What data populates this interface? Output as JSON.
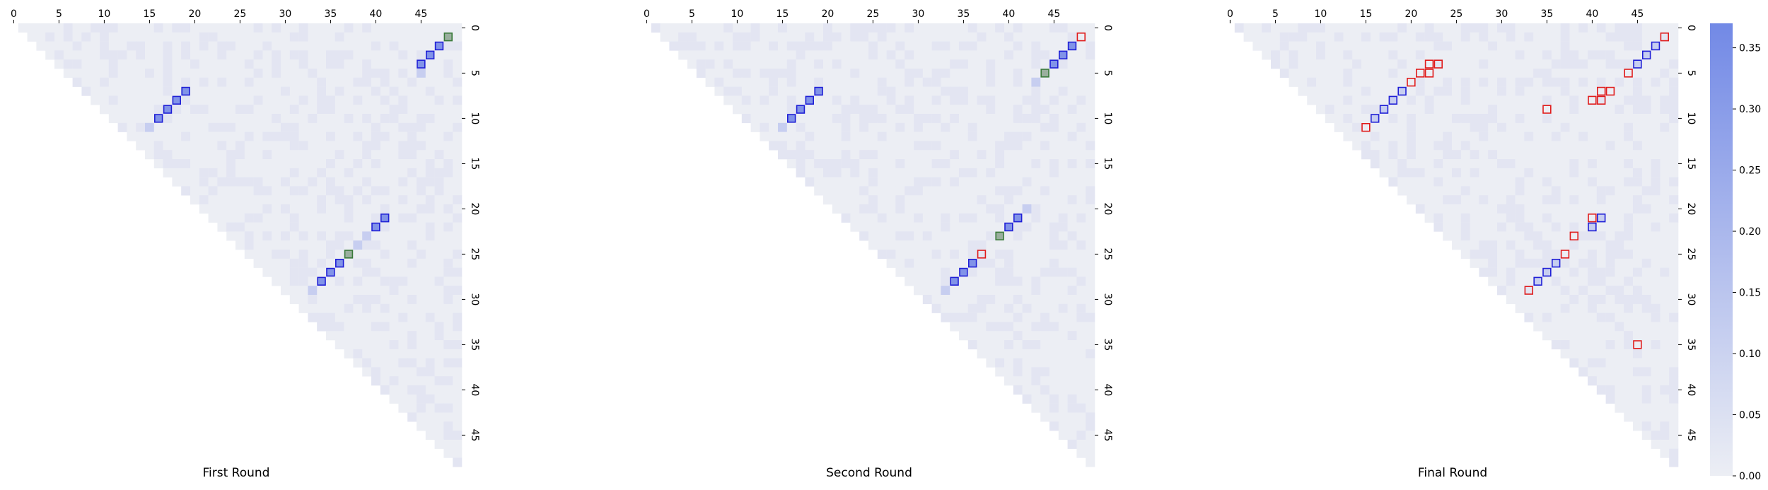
{
  "chart_data": [
    {
      "type": "heatmap",
      "title": "First Round",
      "xlabel": "",
      "ylabel": "",
      "grid_size": 50,
      "x_ticks": [
        0,
        5,
        10,
        15,
        20,
        25,
        30,
        35,
        40,
        45
      ],
      "y_ticks": [
        0,
        5,
        10,
        15,
        20,
        25,
        30,
        35,
        40,
        45
      ],
      "x_tick_position": "top",
      "y_tick_position": "right",
      "shape": "upper-triangle (lower-left cells masked)",
      "highlighted_cells": [
        {
          "row": 1,
          "col": 48,
          "outline": "green"
        },
        {
          "row": 2,
          "col": 47,
          "outline": "blue"
        },
        {
          "row": 3,
          "col": 46,
          "outline": "blue"
        },
        {
          "row": 4,
          "col": 45,
          "outline": "blue"
        },
        {
          "row": 7,
          "col": 19,
          "outline": "blue"
        },
        {
          "row": 8,
          "col": 18,
          "outline": "blue"
        },
        {
          "row": 9,
          "col": 17,
          "outline": "blue"
        },
        {
          "row": 10,
          "col": 16,
          "outline": "blue"
        },
        {
          "row": 21,
          "col": 41,
          "outline": "blue"
        },
        {
          "row": 22,
          "col": 40,
          "outline": "blue"
        },
        {
          "row": 25,
          "col": 37,
          "outline": "green"
        },
        {
          "row": 26,
          "col": 36,
          "outline": "blue"
        },
        {
          "row": 27,
          "col": 35,
          "outline": "blue"
        },
        {
          "row": 28,
          "col": 34,
          "outline": "blue"
        }
      ],
      "faint_cells": [
        {
          "row": 5,
          "col": 45,
          "value": 0.12
        },
        {
          "row": 11,
          "col": 15,
          "value": 0.12
        },
        {
          "row": 23,
          "col": 39,
          "value": 0.12
        },
        {
          "row": 24,
          "col": 38,
          "value": 0.12
        },
        {
          "row": 29,
          "col": 33,
          "value": 0.12
        }
      ]
    },
    {
      "type": "heatmap",
      "title": "Second Round",
      "xlabel": "",
      "ylabel": "",
      "grid_size": 50,
      "x_ticks": [
        0,
        5,
        10,
        15,
        20,
        25,
        30,
        35,
        40,
        45
      ],
      "y_ticks": [
        0,
        5,
        10,
        15,
        20,
        25,
        30,
        35,
        40,
        45
      ],
      "x_tick_position": "top",
      "y_tick_position": "right",
      "shape": "upper-triangle (lower-left cells masked)",
      "highlighted_cells": [
        {
          "row": 1,
          "col": 48,
          "outline": "red"
        },
        {
          "row": 2,
          "col": 47,
          "outline": "blue"
        },
        {
          "row": 3,
          "col": 46,
          "outline": "blue"
        },
        {
          "row": 4,
          "col": 45,
          "outline": "blue"
        },
        {
          "row": 5,
          "col": 44,
          "outline": "green"
        },
        {
          "row": 7,
          "col": 19,
          "outline": "blue"
        },
        {
          "row": 8,
          "col": 18,
          "outline": "blue"
        },
        {
          "row": 9,
          "col": 17,
          "outline": "blue"
        },
        {
          "row": 10,
          "col": 16,
          "outline": "blue"
        },
        {
          "row": 21,
          "col": 41,
          "outline": "blue"
        },
        {
          "row": 22,
          "col": 40,
          "outline": "blue"
        },
        {
          "row": 23,
          "col": 39,
          "outline": "green"
        },
        {
          "row": 25,
          "col": 37,
          "outline": "red"
        },
        {
          "row": 26,
          "col": 36,
          "outline": "blue"
        },
        {
          "row": 27,
          "col": 35,
          "outline": "blue"
        },
        {
          "row": 28,
          "col": 34,
          "outline": "blue"
        }
      ],
      "faint_cells": [
        {
          "row": 6,
          "col": 43,
          "value": 0.12
        },
        {
          "row": 11,
          "col": 15,
          "value": 0.12
        },
        {
          "row": 20,
          "col": 42,
          "value": 0.12
        },
        {
          "row": 29,
          "col": 33,
          "value": 0.12
        }
      ]
    },
    {
      "type": "heatmap",
      "title": "Final Round",
      "xlabel": "",
      "ylabel": "",
      "grid_size": 50,
      "x_ticks": [
        0,
        5,
        10,
        15,
        20,
        25,
        30,
        35,
        40,
        45
      ],
      "y_ticks": [
        0,
        5,
        10,
        15,
        20,
        25,
        30,
        35,
        40,
        45
      ],
      "x_tick_position": "top",
      "y_tick_position": "right",
      "shape": "upper-triangle (lower-left cells masked)",
      "highlighted_cells": [
        {
          "row": 1,
          "col": 48,
          "outline": "red"
        },
        {
          "row": 2,
          "col": 47,
          "outline": "blue"
        },
        {
          "row": 3,
          "col": 46,
          "outline": "blue"
        },
        {
          "row": 4,
          "col": 45,
          "outline": "blue"
        },
        {
          "row": 5,
          "col": 44,
          "outline": "red"
        },
        {
          "row": 7,
          "col": 41,
          "outline": "red"
        },
        {
          "row": 7,
          "col": 42,
          "outline": "red"
        },
        {
          "row": 8,
          "col": 40,
          "outline": "red"
        },
        {
          "row": 8,
          "col": 41,
          "outline": "red"
        },
        {
          "row": 4,
          "col": 22,
          "outline": "red"
        },
        {
          "row": 4,
          "col": 23,
          "outline": "red"
        },
        {
          "row": 5,
          "col": 21,
          "outline": "red"
        },
        {
          "row": 5,
          "col": 22,
          "outline": "red"
        },
        {
          "row": 6,
          "col": 20,
          "outline": "red"
        },
        {
          "row": 7,
          "col": 19,
          "outline": "blue"
        },
        {
          "row": 8,
          "col": 18,
          "outline": "blue"
        },
        {
          "row": 9,
          "col": 17,
          "outline": "blue"
        },
        {
          "row": 10,
          "col": 16,
          "outline": "blue"
        },
        {
          "row": 11,
          "col": 15,
          "outline": "red"
        },
        {
          "row": 9,
          "col": 35,
          "outline": "red"
        },
        {
          "row": 21,
          "col": 40,
          "outline": "red"
        },
        {
          "row": 21,
          "col": 41,
          "outline": "blue"
        },
        {
          "row": 22,
          "col": 40,
          "outline": "blue"
        },
        {
          "row": 23,
          "col": 38,
          "outline": "red"
        },
        {
          "row": 25,
          "col": 37,
          "outline": "red"
        },
        {
          "row": 26,
          "col": 36,
          "outline": "blue"
        },
        {
          "row": 27,
          "col": 35,
          "outline": "blue"
        },
        {
          "row": 28,
          "col": 34,
          "outline": "blue"
        },
        {
          "row": 29,
          "col": 33,
          "outline": "red"
        },
        {
          "row": 35,
          "col": 45,
          "outline": "red"
        }
      ],
      "faint_cells": []
    }
  ],
  "colorbar": {
    "min": 0.0,
    "max": 0.37,
    "ticks": [
      "0.00",
      "0.05",
      "0.10",
      "0.15",
      "0.20",
      "0.25",
      "0.30",
      "0.35"
    ],
    "color_low": "#eceef4",
    "color_high": "#7289e6"
  },
  "colors": {
    "cell_base": "#eceef4",
    "cell_tint": "#e3e5f2",
    "highlight_fill": "#8193e8",
    "highlight_fill_light": "#c7cef0",
    "outline_blue": "#1f1fd6",
    "outline_green": "#3a7a3a",
    "fill_green": "#9aaf9e",
    "outline_red": "#e01c1c"
  }
}
